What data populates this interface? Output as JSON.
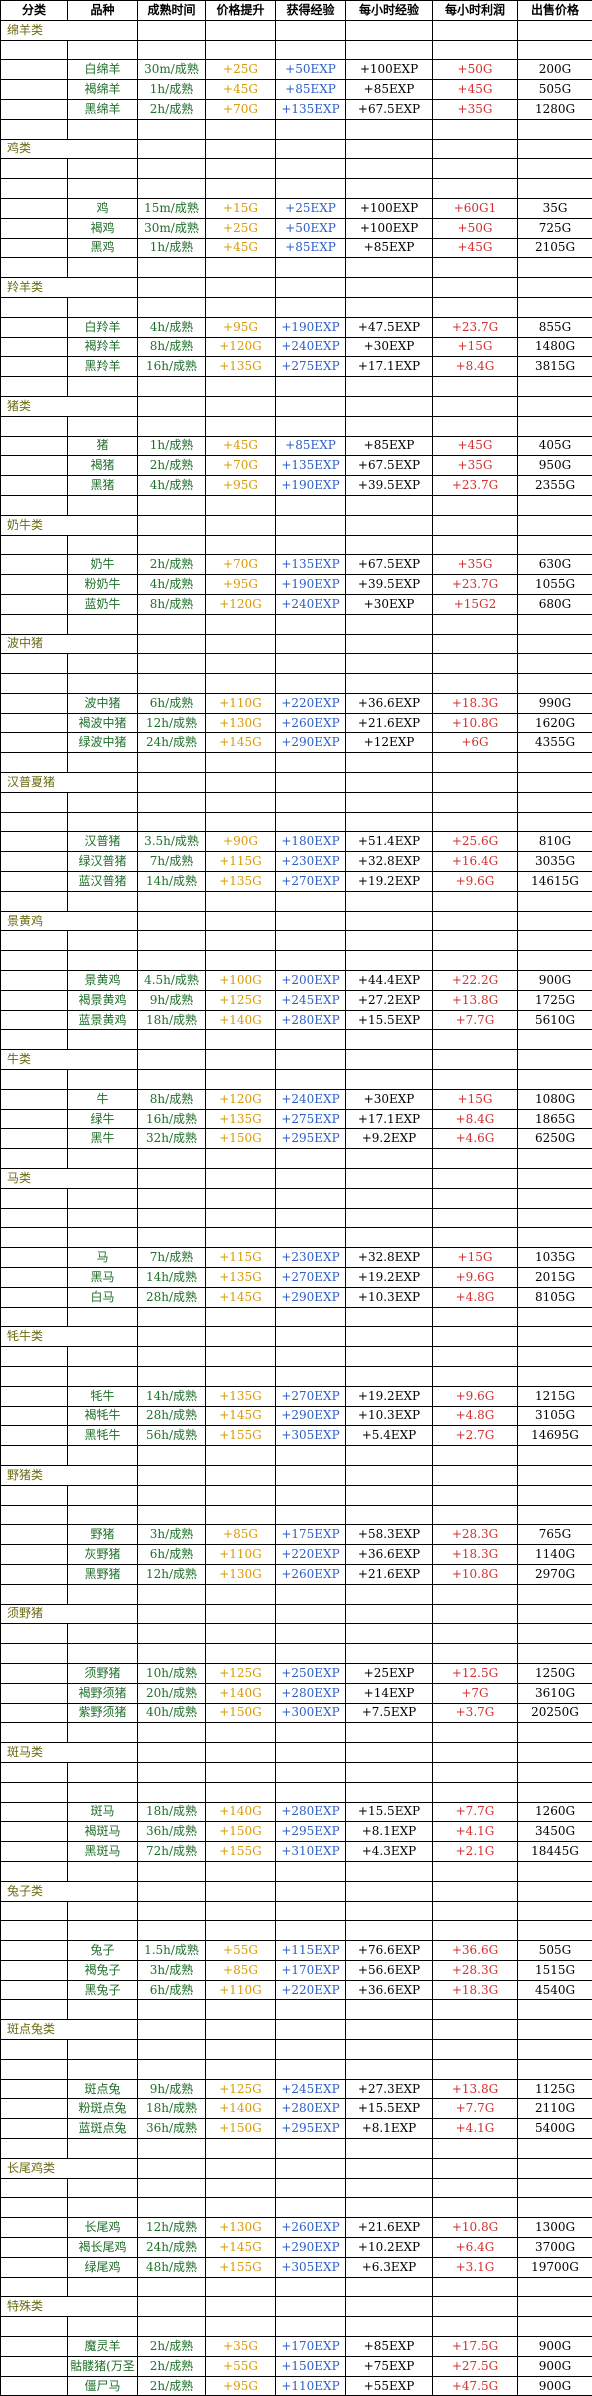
{
  "header": [
    "分类",
    "品种",
    "成熟时间",
    "价格提升",
    "获得经验",
    "每小时经验",
    "每小时利润",
    "出售价格"
  ],
  "groups": [
    {
      "category": "绵羊类",
      "items": [
        {
          "name": "白绵羊",
          "time": "30m/成熟",
          "price_up": "+25G",
          "exp": "+50EXP",
          "exp_per_hour": "+100EXP",
          "profit_per_hour": "+50G",
          "sell_price": "200G"
        },
        {
          "name": "褐绵羊",
          "time": "1h/成熟",
          "price_up": "+45G",
          "exp": "+85EXP",
          "exp_per_hour": "+85EXP",
          "profit_per_hour": "+45G",
          "sell_price": "505G"
        },
        {
          "name": "黑绵羊",
          "time": "2h/成熟",
          "price_up": "+70G",
          "exp": "+135EXP",
          "exp_per_hour": "+67.5EXP",
          "profit_per_hour": "+35G",
          "sell_price": "1280G"
        }
      ]
    },
    {
      "category": "鸡类",
      "items": [
        {
          "name": "鸡",
          "time": "15m/成熟",
          "price_up": "+15G",
          "exp": "+25EXP",
          "exp_per_hour": "+100EXP",
          "profit_per_hour": "+60G1",
          "sell_price": "35G"
        },
        {
          "name": "褐鸡",
          "time": "30m/成熟",
          "price_up": "+25G",
          "exp": "+50EXP",
          "exp_per_hour": "+100EXP",
          "profit_per_hour": "+50G",
          "sell_price": "725G"
        },
        {
          "name": "黑鸡",
          "time": "1h/成熟",
          "price_up": "+45G",
          "exp": "+85EXP",
          "exp_per_hour": "+85EXP",
          "profit_per_hour": "+45G",
          "sell_price": "2105G"
        }
      ]
    },
    {
      "category": "羚羊类",
      "items": [
        {
          "name": "白羚羊",
          "time": "4h/成熟",
          "price_up": "+95G",
          "exp": "+190EXP",
          "exp_per_hour": "+47.5EXP",
          "profit_per_hour": "+23.7G",
          "sell_price": "855G"
        },
        {
          "name": "褐羚羊",
          "time": "8h/成熟",
          "price_up": "+120G",
          "exp": "+240EXP",
          "exp_per_hour": "+30EXP",
          "profit_per_hour": "+15G",
          "sell_price": "1480G"
        },
        {
          "name": "黑羚羊",
          "time": "16h/成熟",
          "price_up": "+135G",
          "exp": "+275EXP",
          "exp_per_hour": "+17.1EXP",
          "profit_per_hour": "+8.4G",
          "sell_price": "3815G"
        }
      ]
    },
    {
      "category": "猪类",
      "items": [
        {
          "name": "猪",
          "time": "1h/成熟",
          "price_up": "+45G",
          "exp": "+85EXP",
          "exp_per_hour": "+85EXP",
          "profit_per_hour": "+45G",
          "sell_price": "405G"
        },
        {
          "name": "褐猪",
          "time": "2h/成熟",
          "price_up": "+70G",
          "exp": "+135EXP",
          "exp_per_hour": "+67.5EXP",
          "profit_per_hour": "+35G",
          "sell_price": "950G"
        },
        {
          "name": "黑猪",
          "time": "4h/成熟",
          "price_up": "+95G",
          "exp": "+190EXP",
          "exp_per_hour": "+39.5EXP",
          "profit_per_hour": "+23.7G",
          "sell_price": "2355G"
        }
      ]
    },
    {
      "category": "奶牛类",
      "items": [
        {
          "name": "奶牛",
          "time": "2h/成熟",
          "price_up": "+70G",
          "exp": "+135EXP",
          "exp_per_hour": "+67.5EXP",
          "profit_per_hour": "+35G",
          "sell_price": "630G"
        },
        {
          "name": "粉奶牛",
          "time": "4h/成熟",
          "price_up": "+95G",
          "exp": "+190EXP",
          "exp_per_hour": "+39.5EXP",
          "profit_per_hour": "+23.7G",
          "sell_price": "1055G"
        },
        {
          "name": "蓝奶牛",
          "time": "8h/成熟",
          "price_up": "+120G",
          "exp": "+240EXP",
          "exp_per_hour": "+30EXP",
          "profit_per_hour": "+15G2",
          "sell_price": "680G"
        }
      ]
    },
    {
      "category": "波中猪",
      "items": [
        {
          "name": "波中猪",
          "time": "6h/成熟",
          "price_up": "+110G",
          "exp": "+220EXP",
          "exp_per_hour": "+36.6EXP",
          "profit_per_hour": "+18.3G",
          "sell_price": "990G"
        },
        {
          "name": "褐波中猪",
          "time": "12h/成熟",
          "price_up": "+130G",
          "exp": "+260EXP",
          "exp_per_hour": "+21.6EXP",
          "profit_per_hour": "+10.8G",
          "sell_price": "1620G"
        },
        {
          "name": "绿波中猪",
          "time": "24h/成熟",
          "price_up": "+145G",
          "exp": "+290EXP",
          "exp_per_hour": "+12EXP",
          "profit_per_hour": "+6G",
          "sell_price": "4355G"
        }
      ]
    },
    {
      "category": "汉普夏猪",
      "items": [
        {
          "name": "汉普猪",
          "time": "3.5h/成熟",
          "price_up": "+90G",
          "exp": "+180EXP",
          "exp_per_hour": "+51.4EXP",
          "profit_per_hour": "+25.6G",
          "sell_price": "810G"
        },
        {
          "name": "绿汉普猪",
          "time": "7h/成熟",
          "price_up": "+115G",
          "exp": "+230EXP",
          "exp_per_hour": "+32.8EXP",
          "profit_per_hour": "+16.4G",
          "sell_price": "3035G"
        },
        {
          "name": "蓝汉普猪",
          "time": "14h/成熟",
          "price_up": "+135G",
          "exp": "+270EXP",
          "exp_per_hour": "+19.2EXP",
          "profit_per_hour": "+9.6G",
          "sell_price": "14615G"
        }
      ]
    },
    {
      "category": "景黄鸡",
      "items": [
        {
          "name": "景黄鸡",
          "time": "4.5h/成熟",
          "price_up": "+100G",
          "exp": "+200EXP",
          "exp_per_hour": "+44.4EXP",
          "profit_per_hour": "+22.2G",
          "sell_price": "900G"
        },
        {
          "name": "褐景黄鸡",
          "time": "9h/成熟",
          "price_up": "+125G",
          "exp": "+245EXP",
          "exp_per_hour": "+27.2EXP",
          "profit_per_hour": "+13.8G",
          "sell_price": "1725G"
        },
        {
          "name": "蓝景黄鸡",
          "time": "18h/成熟",
          "price_up": "+140G",
          "exp": "+280EXP",
          "exp_per_hour": "+15.5EXP",
          "profit_per_hour": "+7.7G",
          "sell_price": "5610G"
        }
      ]
    },
    {
      "category": "牛类",
      "items": [
        {
          "name": "牛",
          "time": "8h/成熟",
          "price_up": "+120G",
          "exp": "+240EXP",
          "exp_per_hour": "+30EXP",
          "profit_per_hour": "+15G",
          "sell_price": "1080G"
        },
        {
          "name": "绿牛",
          "time": "16h/成熟",
          "price_up": "+135G",
          "exp": "+275EXP",
          "exp_per_hour": "+17.1EXP",
          "profit_per_hour": "+8.4G",
          "sell_price": "1865G"
        },
        {
          "name": "黑牛",
          "time": "32h/成熟",
          "price_up": "+150G",
          "exp": "+295EXP",
          "exp_per_hour": "+9.2EXP",
          "profit_per_hour": "+4.6G",
          "sell_price": "6250G"
        }
      ]
    },
    {
      "category": "马类",
      "items": [
        {
          "name": "马",
          "time": "7h/成熟",
          "price_up": "+115G",
          "exp": "+230EXP",
          "exp_per_hour": "+32.8EXP",
          "profit_per_hour": "+15G",
          "sell_price": "1035G"
        },
        {
          "name": "黑马",
          "time": "14h/成熟",
          "price_up": "+135G",
          "exp": "+270EXP",
          "exp_per_hour": "+19.2EXP",
          "profit_per_hour": "+9.6G",
          "sell_price": "2015G"
        },
        {
          "name": "白马",
          "time": "28h/成熟",
          "price_up": "+145G",
          "exp": "+290EXP",
          "exp_per_hour": "+10.3EXP",
          "profit_per_hour": "+4.8G",
          "sell_price": "8105G"
        }
      ]
    },
    {
      "category": "牦牛类",
      "items": [
        {
          "name": "牦牛",
          "time": "14h/成熟",
          "price_up": "+135G",
          "exp": "+270EXP",
          "exp_per_hour": "+19.2EXP",
          "profit_per_hour": "+9.6G",
          "sell_price": "1215G"
        },
        {
          "name": "褐牦牛",
          "time": "28h/成熟",
          "price_up": "+145G",
          "exp": "+290EXP",
          "exp_per_hour": "+10.3EXP",
          "profit_per_hour": "+4.8G",
          "sell_price": "3105G"
        },
        {
          "name": "黑牦牛",
          "time": "56h/成熟",
          "price_up": "+155G",
          "exp": "+305EXP",
          "exp_per_hour": "+5.4EXP",
          "profit_per_hour": "+2.7G",
          "sell_price": "14695G"
        }
      ]
    },
    {
      "category": "野猪类",
      "items": [
        {
          "name": "野猪",
          "time": "3h/成熟",
          "price_up": "+85G",
          "exp": "+175EXP",
          "exp_per_hour": "+58.3EXP",
          "profit_per_hour": "+28.3G",
          "sell_price": "765G"
        },
        {
          "name": "灰野猪",
          "time": "6h/成熟",
          "price_up": "+110G",
          "exp": "+220EXP",
          "exp_per_hour": "+36.6EXP",
          "profit_per_hour": "+18.3G",
          "sell_price": "1140G"
        },
        {
          "name": "黑野猪",
          "time": "12h/成熟",
          "price_up": "+130G",
          "exp": "+260EXP",
          "exp_per_hour": "+21.6EXP",
          "profit_per_hour": "+10.8G",
          "sell_price": "2970G"
        }
      ]
    },
    {
      "category": "须野猪",
      "items": [
        {
          "name": "须野猪",
          "time": "10h/成熟",
          "price_up": "+125G",
          "exp": "+250EXP",
          "exp_per_hour": "+25EXP",
          "profit_per_hour": "+12.5G",
          "sell_price": "1250G"
        },
        {
          "name": "褐野须猪",
          "time": "20h/成熟",
          "price_up": "+140G",
          "exp": "+280EXP",
          "exp_per_hour": "+14EXP",
          "profit_per_hour": "+7G",
          "sell_price": "3610G"
        },
        {
          "name": "紫野须猪",
          "time": "40h/成熟",
          "price_up": "+150G",
          "exp": "+300EXP",
          "exp_per_hour": "+7.5EXP",
          "profit_per_hour": "+3.7G",
          "sell_price": "20250G"
        }
      ]
    },
    {
      "category": "斑马类",
      "items": [
        {
          "name": "斑马",
          "time": "18h/成熟",
          "price_up": "+140G",
          "exp": "+280EXP",
          "exp_per_hour": "+15.5EXP",
          "profit_per_hour": "+7.7G",
          "sell_price": "1260G"
        },
        {
          "name": "褐斑马",
          "time": "36h/成熟",
          "price_up": "+150G",
          "exp": "+295EXP",
          "exp_per_hour": "+8.1EXP",
          "profit_per_hour": "+4.1G",
          "sell_price": "3450G"
        },
        {
          "name": "黑斑马",
          "time": "72h/成熟",
          "price_up": "+155G",
          "exp": "+310EXP",
          "exp_per_hour": "+4.3EXP",
          "profit_per_hour": "+2.1G",
          "sell_price": "18445G"
        }
      ]
    },
    {
      "category": "兔子类",
      "items": [
        {
          "name": "兔子",
          "time": "1.5h/成熟",
          "price_up": "+55G",
          "exp": "+115EXP",
          "exp_per_hour": "+76.6EXP",
          "profit_per_hour": "+36.6G",
          "sell_price": "505G"
        },
        {
          "name": "褐兔子",
          "time": "3h/成熟",
          "price_up": "+85G",
          "exp": "+170EXP",
          "exp_per_hour": "+56.6EXP",
          "profit_per_hour": "+28.3G",
          "sell_price": "1515G"
        },
        {
          "name": "黑兔子",
          "time": "6h/成熟",
          "price_up": "+110G",
          "exp": "+220EXP",
          "exp_per_hour": "+36.6EXP",
          "profit_per_hour": "+18.3G",
          "sell_price": "4540G"
        }
      ]
    },
    {
      "category": "斑点兔类",
      "items": [
        {
          "name": "斑点兔",
          "time": "9h/成熟",
          "price_up": "+125G",
          "exp": "+245EXP",
          "exp_per_hour": "+27.3EXP",
          "profit_per_hour": "+13.8G",
          "sell_price": "1125G"
        },
        {
          "name": "粉斑点兔",
          "time": "18h/成熟",
          "price_up": "+140G",
          "exp": "+280EXP",
          "exp_per_hour": "+15.5EXP",
          "profit_per_hour": "+7.7G",
          "sell_price": "2110G"
        },
        {
          "name": "蓝斑点兔",
          "time": "36h/成熟",
          "price_up": "+150G",
          "exp": "+295EXP",
          "exp_per_hour": "+8.1EXP",
          "profit_per_hour": "+4.1G",
          "sell_price": "5400G"
        }
      ]
    },
    {
      "category": "长尾鸡类",
      "items": [
        {
          "name": "长尾鸡",
          "time": "12h/成熟",
          "price_up": "+130G",
          "exp": "+260EXP",
          "exp_per_hour": "+21.6EXP",
          "profit_per_hour": "+10.8G",
          "sell_price": "1300G"
        },
        {
          "name": "褐长尾鸡",
          "time": "24h/成熟",
          "price_up": "+145G",
          "exp": "+290EXP",
          "exp_per_hour": "+10.2EXP",
          "profit_per_hour": "+6.4G",
          "sell_price": "3700G"
        },
        {
          "name": "绿尾鸡",
          "time": "48h/成熟",
          "price_up": "+155G",
          "exp": "+305EXP",
          "exp_per_hour": "+6.3EXP",
          "profit_per_hour": "+3.1G",
          "sell_price": "19700G"
        }
      ]
    },
    {
      "category": "特殊类",
      "items": [
        {
          "name": "魔灵羊",
          "time": "2h/成熟",
          "price_up": "+35G",
          "exp": "+170EXP",
          "exp_per_hour": "+85EXP",
          "profit_per_hour": "+17.5G",
          "sell_price": "900G"
        },
        {
          "name": "骷髅猪(万圣",
          "time": "2h/成熟",
          "price_up": "+55G",
          "exp": "+150EXP",
          "exp_per_hour": "+75EXP",
          "profit_per_hour": "+27.5G",
          "sell_price": "900G"
        },
        {
          "name": "僵尸马",
          "time": "2h/成熟",
          "price_up": "+95G",
          "exp": "+110EXP",
          "exp_per_hour": "+55EXP",
          "profit_per_hour": "+47.5G",
          "sell_price": "900G"
        }
      ]
    }
  ]
}
